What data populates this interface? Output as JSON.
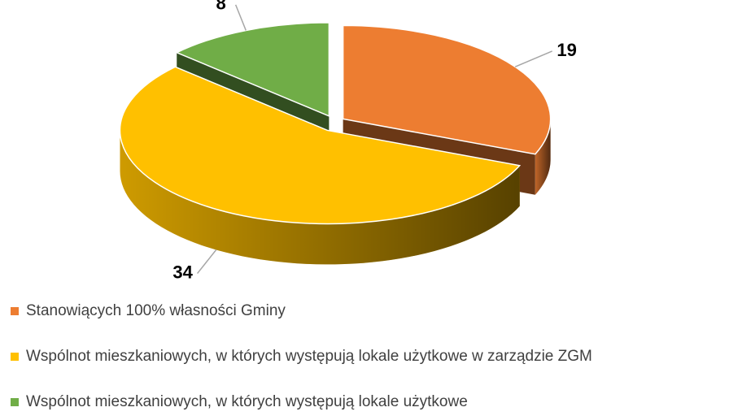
{
  "chart_data": {
    "type": "pie3d",
    "series": [
      {
        "name": "Stanowiących 100% własności Gminy",
        "color": "#ed7d31",
        "values": [
          19
        ]
      },
      {
        "name": "Wspólnot mieszkaniowych, w których występują lokale użytkowe w zarządzie ZGM",
        "color": "#ffc000",
        "values": [
          34
        ]
      },
      {
        "name": "Wspólnot mieszkaniowych, w których występują lokale użytkowe",
        "color": "#70ad47",
        "values": [
          8
        ]
      }
    ],
    "legend": "bottom"
  }
}
